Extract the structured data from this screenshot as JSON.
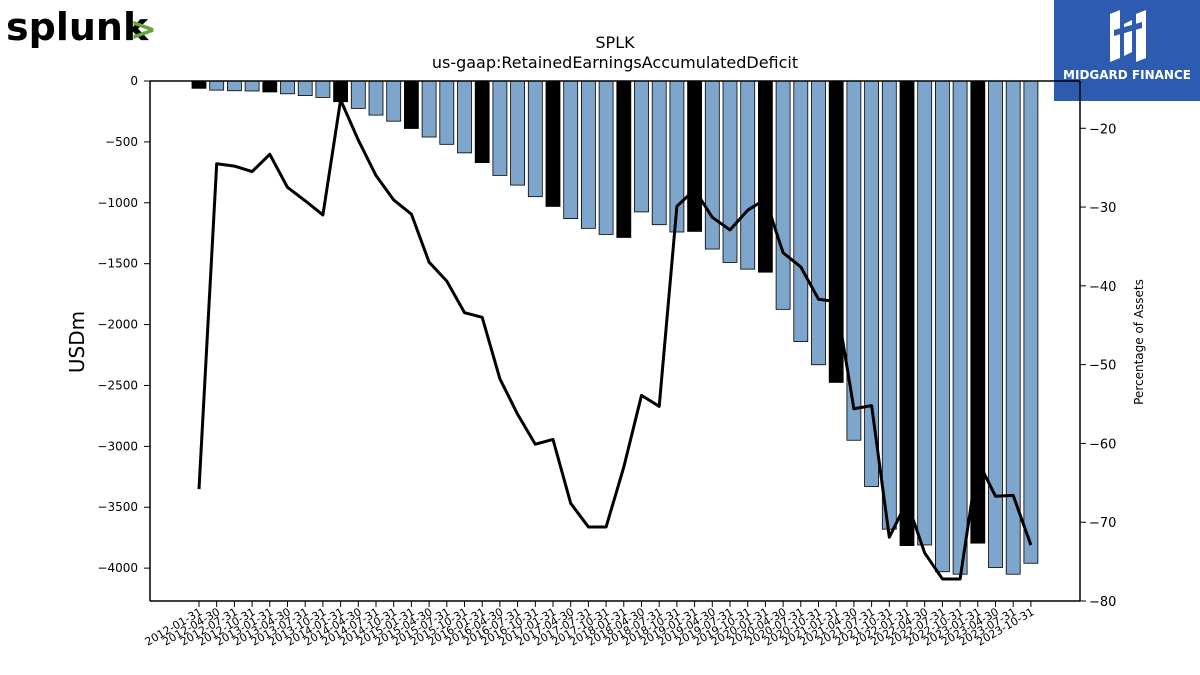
{
  "branding": {
    "left_logo_text": "splunk",
    "left_logo_mark": ">",
    "left_logo_accent": "#65a637",
    "right_logo_text": "MIDGARD FINANCE",
    "right_logo_bg": "#2d5bb0"
  },
  "chart_data": {
    "type": "bar",
    "title": "SPLK",
    "subtitle": "us-gaap:RetainedEarningsAccumulatedDeficit",
    "ylabel": "USDm",
    "y2label": "Percentage of Assets",
    "ylim": [
      -4270,
      0
    ],
    "y2lim": [
      -80,
      -14
    ],
    "yticks": [
      0,
      -500,
      -1000,
      -1500,
      -2000,
      -2500,
      -3000,
      -3500,
      -4000
    ],
    "y2ticks": [
      -20,
      -30,
      -40,
      -50,
      -60,
      -70,
      -80
    ],
    "colors": {
      "quarter": "#7ea6cc",
      "fiscal_year_end": "#000000",
      "line": "#000000"
    },
    "grid": false,
    "categories": [
      "2012-01-31",
      "2012-04-30",
      "2012-07-31",
      "2012-10-31",
      "2013-01-31",
      "2013-04-30",
      "2013-07-31",
      "2013-10-31",
      "2014-01-31",
      "2014-04-30",
      "2014-07-31",
      "2014-10-31",
      "2015-01-31",
      "2015-04-30",
      "2015-07-31",
      "2015-10-31",
      "2016-01-31",
      "2016-04-30",
      "2016-07-31",
      "2016-10-31",
      "2017-01-31",
      "2017-04-30",
      "2017-07-31",
      "2017-10-31",
      "2018-01-31",
      "2018-04-30",
      "2018-07-31",
      "2018-10-31",
      "2019-01-31",
      "2019-04-30",
      "2019-07-31",
      "2019-10-31",
      "2020-01-31",
      "2020-04-30",
      "2020-07-31",
      "2020-10-31",
      "2021-01-31",
      "2021-04-30",
      "2021-07-31",
      "2021-10-31",
      "2022-01-31",
      "2022-04-30",
      "2022-07-31",
      "2022-10-31",
      "2023-01-31",
      "2023-04-30",
      "2023-07-31",
      "2023-10-31"
    ],
    "fiscal_year_end": [
      true,
      false,
      false,
      false,
      true,
      false,
      false,
      false,
      true,
      false,
      false,
      false,
      true,
      false,
      false,
      false,
      true,
      false,
      false,
      false,
      true,
      false,
      false,
      false,
      true,
      false,
      false,
      false,
      true,
      false,
      false,
      false,
      true,
      false,
      false,
      false,
      true,
      false,
      false,
      false,
      true,
      false,
      false,
      false,
      true,
      false,
      false,
      false
    ],
    "series": [
      {
        "name": "",
        "axis": "left",
        "kind": "bar",
        "values": [
          -60,
          -75,
          -80,
          -82,
          -90,
          -105,
          -120,
          -135,
          -170,
          -225,
          -280,
          -330,
          -390,
          -460,
          -520,
          -590,
          -670,
          -775,
          -855,
          -950,
          -1030,
          -1130,
          -1210,
          -1260,
          -1285,
          -1075,
          -1180,
          -1240,
          -1235,
          -1380,
          -1490,
          -1545,
          -1570,
          -1875,
          -2140,
          -2330,
          -2475,
          -2950,
          -3330,
          -3680,
          -3815,
          -3810,
          -4030,
          -4050,
          -3795,
          -3995,
          -4050,
          -3960
        ]
      },
      {
        "name": "",
        "axis": "right",
        "kind": "line",
        "values": [
          -65.8,
          -24.5,
          -24.8,
          -25.5,
          -23.3,
          -27.5,
          -29.2,
          -31.0,
          -16.4,
          -21.5,
          -26.0,
          -29.1,
          -30.9,
          -37.0,
          -39.4,
          -43.4,
          -44.0,
          -51.8,
          -56.3,
          -60.1,
          -59.5,
          -67.6,
          -70.6,
          -70.6,
          -63.0,
          -53.9,
          -55.3,
          -29.9,
          -27.8,
          -31.3,
          -32.9,
          -30.4,
          -29.0,
          -35.8,
          -37.6,
          -41.7,
          -42.0,
          -55.6,
          -55.2,
          -71.9,
          -67.4,
          -73.9,
          -77.2,
          -77.2,
          -62.2,
          -66.7,
          -66.6,
          -72.9
        ]
      }
    ]
  }
}
